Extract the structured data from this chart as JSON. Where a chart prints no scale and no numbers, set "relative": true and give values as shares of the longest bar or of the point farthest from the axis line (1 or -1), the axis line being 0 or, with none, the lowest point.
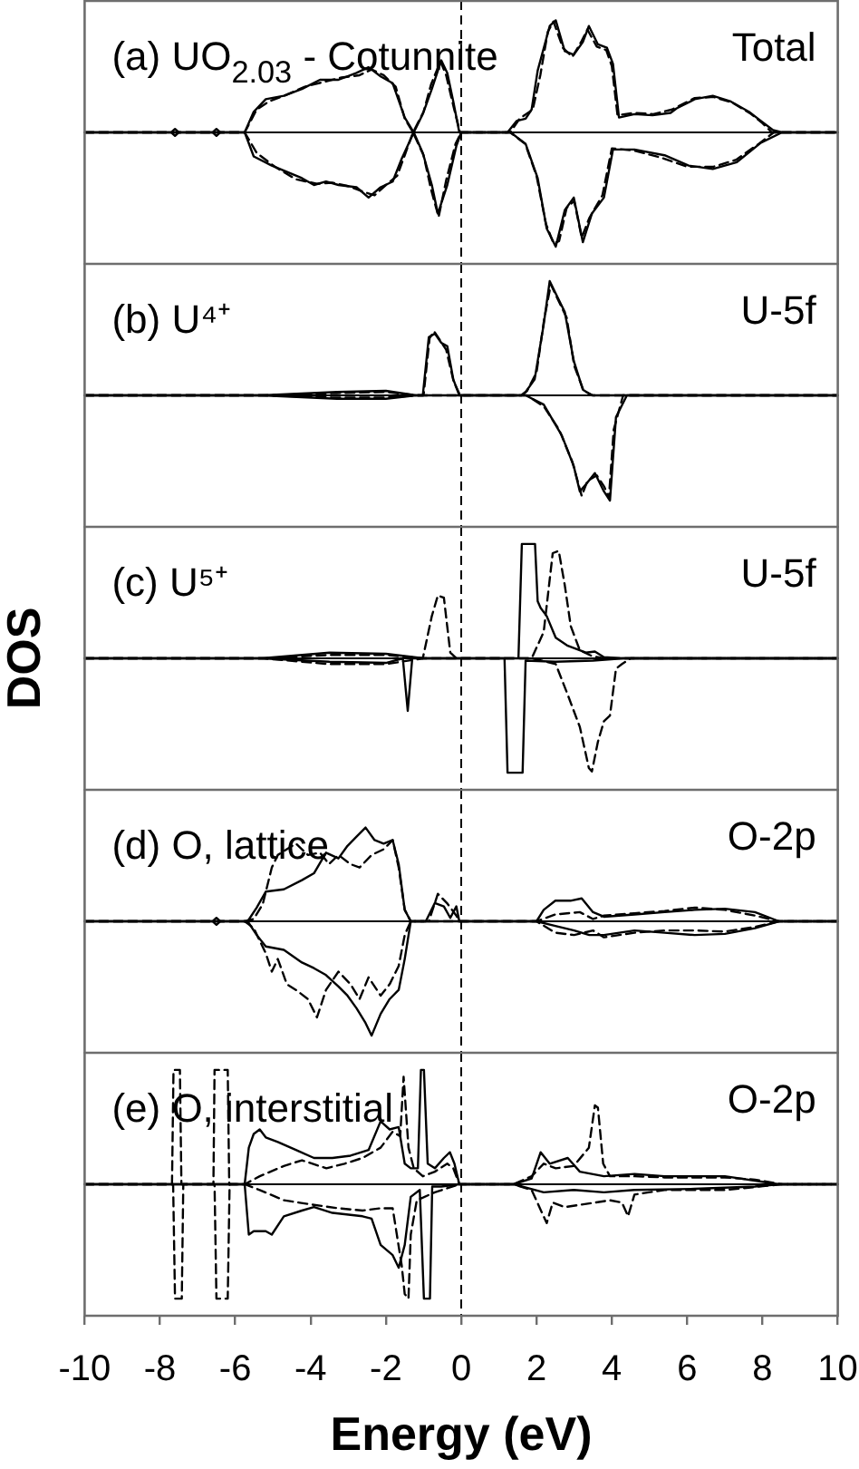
{
  "chart_data": [
    {
      "type": "line",
      "relative": true,
      "xlim": [
        -10,
        10
      ],
      "tick_labels": false,
      "marker": "none",
      "annotations": [
        "(a) UO$_{2.03}$ - Cotunnite",
        "Total"
      ],
      "ref_lines": [
        {
          "axis": "x",
          "value": 0,
          "color": "#000000",
          "line_style": "dashed"
        }
      ],
      "series": [
        {
          "color": "#000000",
          "line_style": "solid",
          "x": [
            -10,
            -7.7,
            -7.6,
            -7.5,
            -6.6,
            -6.5,
            -6.4,
            -5.75,
            -5.51,
            -5.19,
            -4.71,
            -4.23,
            -3.75,
            -3.26,
            -2.78,
            -2.46,
            -2.14,
            -1.82,
            -1.5,
            -1.26,
            -1.02,
            -0.78,
            -0.53,
            -0.37,
            -0.21,
            -0.05,
            1.23,
            1.47,
            1.71,
            1.87,
            2.03,
            2.35,
            2.51,
            2.75,
            2.99,
            3.23,
            3.39,
            3.63,
            3.87,
            4.03,
            4.19,
            4.6,
            5.08,
            5.56,
            5.72,
            6.2,
            6.68,
            7.16,
            7.64,
            7.96,
            8.28,
            8.52,
            10
          ],
          "values": [
            0,
            0,
            0.03,
            0,
            0,
            0.03,
            0,
            0,
            0.18,
            0.29,
            0.32,
            0.38,
            0.46,
            0.46,
            0.52,
            0.57,
            0.49,
            0.43,
            0.13,
            0,
            0.16,
            0.38,
            0.63,
            0.52,
            0.27,
            0,
            0,
            0.1,
            0.12,
            0.2,
            0.54,
            0.93,
            0.98,
            0.71,
            0.68,
            0.79,
            0.93,
            0.77,
            0.74,
            0.6,
            0.13,
            0.16,
            0.15,
            0.17,
            0.21,
            0.29,
            0.32,
            0.27,
            0.18,
            0.1,
            0.02,
            0,
            0
          ]
        },
        {
          "color": "#000000",
          "line_style": "solid",
          "x": [
            -10,
            -7.7,
            -7.6,
            -7.5,
            -6.6,
            -6.5,
            -6.4,
            -5.75,
            -5.51,
            -5.03,
            -4.23,
            -3.91,
            -3.59,
            -3.26,
            -2.78,
            -2.46,
            -2.14,
            -1.82,
            -1.58,
            -1.26,
            -1.02,
            -0.78,
            -0.62,
            -0.37,
            -0.13,
            0,
            1.31,
            1.71,
            2.03,
            2.27,
            2.51,
            2.75,
            2.99,
            3.23,
            3.47,
            3.79,
            4.03,
            4.6,
            5.4,
            6.04,
            6.68,
            7.32,
            7.96,
            8.52,
            10
          ],
          "values": [
            0,
            0,
            -0.03,
            0,
            0,
            -0.03,
            0,
            0,
            -0.21,
            -0.29,
            -0.4,
            -0.46,
            -0.43,
            -0.46,
            -0.48,
            -0.57,
            -0.48,
            -0.43,
            -0.23,
            0,
            -0.18,
            -0.46,
            -0.71,
            -0.46,
            -0.12,
            0,
            0,
            -0.1,
            -0.4,
            -0.84,
            -1,
            -0.68,
            -0.57,
            -0.96,
            -0.71,
            -0.57,
            -0.15,
            -0.15,
            -0.2,
            -0.29,
            -0.32,
            -0.26,
            -0.09,
            0,
            0
          ]
        },
        {
          "color": "#000000",
          "line_style": "dashed",
          "x": [
            -10,
            -5.75,
            -5.43,
            -5.11,
            -4.63,
            -4.15,
            -3.67,
            -3.18,
            -2.7,
            -2.38,
            -2.06,
            -1.74,
            -1.5,
            -1.28,
            -1.0,
            -0.8,
            -0.55,
            -0.4,
            -0.2,
            -0.03,
            1.3,
            1.55,
            1.9,
            2.1,
            2.3,
            2.45,
            2.7,
            2.95,
            3.2,
            3.35,
            3.6,
            3.85,
            4.0,
            4.15,
            4.6,
            5.1,
            5.6,
            6.2,
            6.7,
            7.2,
            7.7,
            8.0,
            8.25,
            10
          ],
          "values": [
            0,
            0,
            0.2,
            0.27,
            0.33,
            0.4,
            0.44,
            0.48,
            0.5,
            0.55,
            0.5,
            0.4,
            0.12,
            0,
            0.18,
            0.42,
            0.62,
            0.5,
            0.22,
            0,
            0,
            0.12,
            0.2,
            0.5,
            0.88,
            0.97,
            0.74,
            0.66,
            0.8,
            0.9,
            0.75,
            0.72,
            0.58,
            0.15,
            0.17,
            0.16,
            0.2,
            0.3,
            0.31,
            0.26,
            0.16,
            0.08,
            0,
            0
          ]
        },
        {
          "color": "#000000",
          "line_style": "dashed",
          "x": [
            -10,
            -5.75,
            -5.43,
            -4.95,
            -4.39,
            -3.83,
            -3.42,
            -3.0,
            -2.6,
            -2.3,
            -2.0,
            -1.7,
            -1.5,
            -1.28,
            -1.0,
            -0.8,
            -0.6,
            -0.4,
            -0.15,
            0,
            1.3,
            1.7,
            2.0,
            2.25,
            2.45,
            2.6,
            2.8,
            3.0,
            3.2,
            3.4,
            3.75,
            4.0,
            4.6,
            5.3,
            6.0,
            6.7,
            7.3,
            7.9,
            8.3,
            10
          ],
          "values": [
            0,
            0,
            -0.18,
            -0.3,
            -0.41,
            -0.45,
            -0.44,
            -0.47,
            -0.52,
            -0.55,
            -0.46,
            -0.38,
            -0.2,
            0,
            -0.2,
            -0.5,
            -0.74,
            -0.42,
            -0.1,
            0,
            0,
            -0.1,
            -0.38,
            -0.8,
            -0.97,
            -0.95,
            -0.66,
            -0.6,
            -0.92,
            -0.75,
            -0.55,
            -0.14,
            -0.16,
            -0.22,
            -0.3,
            -0.3,
            -0.24,
            -0.1,
            0,
            0
          ]
        }
      ]
    },
    {
      "type": "line",
      "relative": true,
      "xlim": [
        -10,
        10
      ],
      "tick_labels": false,
      "marker": "none",
      "annotations": [
        "(b) U⁴⁺",
        "U-5f"
      ],
      "ref_lines": [
        {
          "axis": "x",
          "value": 0,
          "color": "#000000",
          "line_style": "dashed"
        }
      ],
      "series": [
        {
          "color": "#000000",
          "line_style": "solid",
          "x": [
            -10,
            -5.3,
            -3.3,
            -2.0,
            -1.2,
            -1.02,
            -0.86,
            -0.7,
            -0.53,
            -0.37,
            -0.21,
            -0.05,
            1.6,
            1.71,
            1.95,
            2.19,
            2.35,
            2.51,
            2.75,
            2.99,
            3.23,
            3.47,
            10
          ],
          "values": [
            0,
            0,
            0.03,
            0.04,
            0,
            0,
            0.51,
            0.54,
            0.46,
            0.43,
            0.14,
            0,
            0,
            0.03,
            0.14,
            0.62,
            1,
            0.89,
            0.73,
            0.3,
            0.05,
            0,
            0
          ]
        },
        {
          "color": "#000000",
          "line_style": "solid",
          "x": [
            -10,
            -5.3,
            -3.3,
            -2.0,
            -1.2,
            1.71,
            2.19,
            2.67,
            2.99,
            3.15,
            3.31,
            3.55,
            3.79,
            3.95,
            4.11,
            4.4,
            10
          ],
          "values": [
            0,
            0,
            -0.03,
            -0.03,
            0,
            0,
            -0.08,
            -0.35,
            -0.62,
            -0.84,
            -0.78,
            -0.68,
            -0.84,
            -0.92,
            -0.19,
            0,
            0
          ]
        },
        {
          "color": "#000000",
          "line_style": "dashed",
          "x": [
            -10,
            -5.3,
            -3.3,
            -2.0,
            -1.2,
            -1.0,
            -0.84,
            -0.72,
            -0.6,
            -0.4,
            -0.2,
            -0.03,
            1.6,
            1.75,
            2.0,
            2.2,
            2.38,
            2.55,
            2.8,
            3.0,
            3.25,
            3.5,
            10
          ],
          "values": [
            0,
            0,
            0.02,
            0.03,
            0,
            0,
            0.5,
            0.56,
            0.5,
            0.4,
            0.12,
            0,
            0,
            0.04,
            0.2,
            0.66,
            0.97,
            0.85,
            0.68,
            0.26,
            0.04,
            0,
            0
          ]
        },
        {
          "color": "#000000",
          "line_style": "dashed",
          "x": [
            -10,
            -5.3,
            -3.3,
            -2.0,
            -1.2,
            1.75,
            2.2,
            2.6,
            2.95,
            3.2,
            3.35,
            3.6,
            3.8,
            3.92,
            4.05,
            4.3,
            10
          ],
          "values": [
            0,
            0,
            -0.02,
            -0.02,
            0,
            0,
            -0.1,
            -0.3,
            -0.58,
            -0.88,
            -0.75,
            -0.7,
            -0.8,
            -0.9,
            -0.3,
            0,
            0
          ]
        }
      ]
    },
    {
      "type": "line",
      "relative": true,
      "xlim": [
        -10,
        10
      ],
      "tick_labels": false,
      "marker": "none",
      "ylabel": "DOS",
      "annotations": [
        "(c) U⁵⁺",
        "U-5f"
      ],
      "ref_lines": [
        {
          "axis": "x",
          "value": 0,
          "color": "#000000",
          "line_style": "dashed"
        }
      ],
      "series": [
        {
          "color": "#000000",
          "line_style": "solid",
          "x": [
            -10,
            -5.3,
            -3.5,
            -2.0,
            -1.0,
            1.52,
            1.61,
            1.96,
            2.03,
            2.11,
            2.27,
            2.51,
            2.83,
            3.31,
            3.55,
            3.79,
            4.27,
            10
          ],
          "values": [
            0,
            0,
            0.05,
            0.04,
            0,
            0,
            1,
            1,
            0.5,
            0.44,
            0.37,
            0.18,
            0.11,
            0.05,
            0.06,
            0.01,
            0,
            0
          ]
        },
        {
          "color": "#000000",
          "line_style": "solid",
          "x": [
            -10,
            -5.3,
            -3.5,
            -2.0,
            -1.55,
            -1.42,
            -1.3,
            -1.0,
            1.15,
            1.23,
            1.63,
            1.71,
            2.5,
            3.5,
            4.3,
            10
          ],
          "values": [
            0,
            0,
            -0.03,
            -0.04,
            0,
            -0.46,
            0,
            0,
            0,
            -1,
            -1,
            -0.02,
            -0.03,
            -0.02,
            0,
            0
          ]
        },
        {
          "color": "#000000",
          "line_style": "dashed",
          "x": [
            -10,
            -5.3,
            -3.5,
            -2.0,
            -1.02,
            -0.78,
            -0.62,
            -0.46,
            -0.29,
            -0.13,
            1.87,
            2.19,
            2.43,
            2.59,
            2.75,
            2.91,
            3.15,
            3.47,
            3.79,
            10
          ],
          "values": [
            0,
            0,
            0.03,
            0.03,
            0,
            0.37,
            0.55,
            0.53,
            0.05,
            0,
            0,
            0.23,
            0.92,
            0.94,
            0.64,
            0.28,
            0.07,
            0.02,
            0,
            0
          ]
        },
        {
          "color": "#000000",
          "line_style": "dashed",
          "x": [
            -10,
            -5.3,
            -3.5,
            -2.0,
            -1.0,
            1.87,
            2.51,
            2.83,
            3.15,
            3.39,
            3.47,
            3.63,
            3.79,
            3.95,
            4.11,
            4.27,
            4.5,
            10
          ],
          "values": [
            0,
            0,
            -0.05,
            -0.05,
            0,
            0,
            -0.05,
            -0.32,
            -0.6,
            -0.96,
            -0.99,
            -0.73,
            -0.55,
            -0.5,
            -0.09,
            -0.05,
            0,
            0
          ]
        }
      ]
    },
    {
      "type": "line",
      "relative": true,
      "xlim": [
        -10,
        10
      ],
      "tick_labels": false,
      "marker": "none",
      "annotations": [
        "(d) O, lattice",
        "O-2p"
      ],
      "ref_lines": [
        {
          "axis": "x",
          "value": 0,
          "color": "#000000",
          "line_style": "dashed"
        }
      ],
      "series": [
        {
          "color": "#000000",
          "line_style": "solid",
          "x": [
            -10,
            -6.6,
            -6.5,
            -6.4,
            -5.67,
            -5.43,
            -5.19,
            -4.71,
            -4.23,
            -3.91,
            -3.59,
            -3.26,
            -3.02,
            -2.78,
            -2.54,
            -2.3,
            -2.06,
            -1.82,
            -1.66,
            -1.5,
            -1.34,
            -0.94,
            -0.7,
            -0.46,
            -0.29,
            -0.13,
            -0.05,
            2.0,
            2.19,
            2.5,
            2.9,
            3.2,
            3.5,
            3.79,
            4.6,
            5.4,
            6.2,
            7.0,
            7.8,
            8.44,
            10
          ],
          "values": [
            0,
            0,
            0.03,
            0,
            0,
            0.12,
            0.26,
            0.28,
            0.36,
            0.42,
            0.6,
            0.55,
            0.66,
            0.74,
            0.82,
            0.71,
            0.68,
            0.71,
            0.5,
            0.1,
            0,
            0,
            0.16,
            0.13,
            0.03,
            0.13,
            0,
            0,
            0.1,
            0.18,
            0.18,
            0.2,
            0.08,
            0.04,
            0.06,
            0.08,
            0.1,
            0.11,
            0.08,
            0,
            0
          ]
        },
        {
          "color": "#000000",
          "line_style": "solid",
          "x": [
            -10,
            -6.6,
            -6.5,
            -6.4,
            -5.67,
            -5.43,
            -5.19,
            -4.71,
            -4.23,
            -3.91,
            -3.59,
            -3.26,
            -3.02,
            -2.78,
            -2.54,
            -2.38,
            -2.14,
            -1.9,
            -1.66,
            -1.5,
            -1.34,
            2.0,
            2.5,
            3.0,
            3.4,
            3.79,
            4.6,
            5.4,
            6.2,
            7.0,
            7.8,
            8.44,
            10
          ],
          "values": [
            0,
            0,
            -0.03,
            0,
            0,
            -0.12,
            -0.22,
            -0.25,
            -0.36,
            -0.41,
            -0.47,
            -0.57,
            -0.65,
            -0.76,
            -0.89,
            -1,
            -0.81,
            -0.68,
            -0.6,
            -0.33,
            0,
            0,
            -0.04,
            -0.08,
            -0.12,
            -0.12,
            -0.08,
            -0.1,
            -0.12,
            -0.11,
            -0.06,
            0,
            0
          ]
        },
        {
          "color": "#000000",
          "line_style": "dashed",
          "x": [
            -10,
            -5.75,
            -5.51,
            -5.27,
            -5.03,
            -4.87,
            -4.63,
            -4.39,
            -4.07,
            -3.75,
            -3.51,
            -3.26,
            -2.94,
            -2.7,
            -2.38,
            -2.06,
            -1.82,
            -1.66,
            -1.5,
            -1.34,
            -0.86,
            -0.62,
            -0.38,
            -0.13,
            -0.05,
            2.0,
            2.5,
            3.15,
            3.5,
            3.79,
            4.6,
            5.4,
            6.2,
            7.0,
            7.8,
            8.44,
            10
          ],
          "values": [
            0,
            0,
            0.02,
            0.15,
            0.47,
            0.58,
            0.63,
            0.68,
            0.58,
            0.6,
            0.5,
            0.58,
            0.5,
            0.47,
            0.58,
            0.63,
            0.71,
            0.47,
            0.1,
            0,
            0,
            0.24,
            0.16,
            0.05,
            0,
            0,
            0.06,
            0.08,
            0.02,
            0.05,
            0.07,
            0.09,
            0.12,
            0.1,
            0.05,
            0,
            0
          ]
        },
        {
          "color": "#000000",
          "line_style": "dashed",
          "x": [
            -10,
            -5.75,
            -5.51,
            -5.19,
            -5.03,
            -4.87,
            -4.63,
            -4.39,
            -4.07,
            -3.83,
            -3.59,
            -3.26,
            -2.94,
            -2.7,
            -2.46,
            -2.14,
            -1.9,
            -1.66,
            -1.5,
            -1.34,
            2.0,
            2.5,
            3.0,
            3.5,
            3.79,
            4.6,
            5.4,
            6.2,
            7.0,
            7.8,
            8.44,
            10
          ],
          "values": [
            0,
            0,
            -0.06,
            -0.28,
            -0.44,
            -0.33,
            -0.55,
            -0.6,
            -0.68,
            -0.84,
            -0.6,
            -0.44,
            -0.55,
            -0.68,
            -0.49,
            -0.65,
            -0.55,
            -0.39,
            -0.12,
            0,
            0,
            -0.1,
            -0.12,
            -0.08,
            -0.14,
            -0.1,
            -0.08,
            -0.08,
            -0.09,
            -0.05,
            0,
            0
          ]
        }
      ]
    },
    {
      "type": "line",
      "relative": true,
      "xlim": [
        -10,
        10
      ],
      "xticks": [
        -10,
        -8,
        -6,
        -4,
        -2,
        0,
        2,
        4,
        6,
        8,
        10
      ],
      "xlabel": "Energy (eV)",
      "tick_labels": "x",
      "marker": "none",
      "annotations": [
        "(e) O, interstitial",
        "O-2p"
      ],
      "ref_lines": [
        {
          "axis": "x",
          "value": 0,
          "color": "#000000",
          "line_style": "dashed"
        }
      ],
      "series": [
        {
          "color": "#000000",
          "line_style": "solid",
          "x": [
            -10,
            -5.75,
            -5.64,
            -5.51,
            -5.35,
            -5.19,
            -4.87,
            -4.39,
            -3.91,
            -3.42,
            -2.94,
            -2.46,
            -2.14,
            -1.9,
            -1.66,
            -1.5,
            -1.34,
            -1.15,
            -1.07,
            -0.99,
            -0.89,
            -0.7,
            -0.46,
            -0.3,
            -0.18,
            -0.05,
            1.39,
            1.87,
            2.11,
            2.35,
            2.83,
            3.15,
            3.79,
            4.6,
            5.4,
            7.0,
            8.44,
            10
          ],
          "values": [
            0,
            0,
            0.32,
            0.44,
            0.48,
            0.41,
            0.37,
            0.3,
            0.23,
            0.23,
            0.25,
            0.3,
            0.55,
            0.48,
            0.5,
            0.18,
            0.14,
            0.14,
            1,
            1,
            0.18,
            0.14,
            0.23,
            0.28,
            0.18,
            0,
            0,
            0.05,
            0.28,
            0.18,
            0.23,
            0.11,
            0.07,
            0.09,
            0.07,
            0.07,
            0,
            0
          ]
        },
        {
          "color": "#000000",
          "line_style": "solid",
          "x": [
            -10,
            -5.75,
            -5.64,
            -5.51,
            -5.19,
            -5.03,
            -4.71,
            -4.23,
            -3.91,
            -3.42,
            -2.62,
            -2.38,
            -2.14,
            -1.82,
            -1.66,
            -1.5,
            -1.34,
            -1.1,
            -0.99,
            -0.83,
            -0.77,
            -0.53,
            -0.05,
            1.39,
            2.19,
            2.99,
            3.79,
            4.6,
            6.2,
            7.8,
            8.44,
            10
          ],
          "values": [
            0,
            0,
            -0.44,
            -0.41,
            -0.41,
            -0.44,
            -0.28,
            -0.23,
            -0.2,
            -0.25,
            -0.28,
            -0.3,
            -0.53,
            -0.62,
            -0.73,
            -0.53,
            -0.11,
            -0.05,
            -1,
            -1,
            -0.02,
            -0.02,
            0,
            0,
            -0.07,
            -0.05,
            -0.07,
            -0.05,
            -0.04,
            -0.02,
            0,
            0
          ]
        },
        {
          "color": "#000000",
          "line_style": "dashed",
          "x": [
            -10,
            -7.68,
            -7.64,
            -7.47,
            -7.43,
            -6.58,
            -6.55,
            -6.2,
            -6.16,
            -5.75,
            -5.35,
            -4.71,
            -4.23,
            -3.58,
            -3.1,
            -2.62,
            -2.14,
            -1.82,
            -1.62,
            -1.53,
            -1.4,
            -1.26,
            -1.02,
            -0.7,
            -0.37,
            -0.21,
            -0.05,
            1.39,
            1.87,
            2.19,
            2.51,
            2.99,
            3.39,
            3.55,
            3.63,
            3.77,
            3.95,
            4.6,
            5.4,
            7.0,
            7.8,
            8.52,
            10
          ],
          "values": [
            0,
            0,
            1,
            1,
            0,
            0,
            1,
            1,
            0,
            0,
            0.07,
            0.16,
            0.21,
            0.14,
            0.18,
            0.23,
            0.32,
            0.46,
            0.42,
            0.94,
            0.32,
            0.14,
            0.07,
            0.11,
            0.18,
            0.14,
            0,
            0,
            0.07,
            0.18,
            0.14,
            0.16,
            0.32,
            0.69,
            0.67,
            0.18,
            0.07,
            0.07,
            0.06,
            0.06,
            0.04,
            0,
            0
          ]
        },
        {
          "color": "#000000",
          "line_style": "dashed",
          "x": [
            -10,
            -7.65,
            -7.6,
            -7.42,
            -7.38,
            -6.55,
            -6.5,
            -6.2,
            -6.15,
            -5.75,
            -5.35,
            -4.71,
            -3.91,
            -3.26,
            -2.62,
            -2.14,
            -1.82,
            -1.58,
            -1.5,
            -1.4,
            -1.34,
            -1.18,
            -0.7,
            -0.05,
            1.39,
            1.87,
            2.27,
            2.43,
            2.75,
            3.15,
            3.95,
            4.27,
            4.43,
            4.6,
            5.4,
            7.0,
            8.52,
            10
          ],
          "values": [
            0,
            0,
            -1,
            -1,
            0,
            0,
            -1,
            -1,
            0,
            0,
            -0.05,
            -0.14,
            -0.18,
            -0.21,
            -0.23,
            -0.21,
            -0.21,
            -0.71,
            -0.96,
            -1,
            -0.44,
            -0.14,
            -0.07,
            0,
            0,
            -0.05,
            -0.34,
            -0.16,
            -0.2,
            -0.18,
            -0.14,
            -0.16,
            -0.28,
            -0.09,
            -0.05,
            -0.05,
            0,
            0
          ]
        }
      ]
    }
  ]
}
